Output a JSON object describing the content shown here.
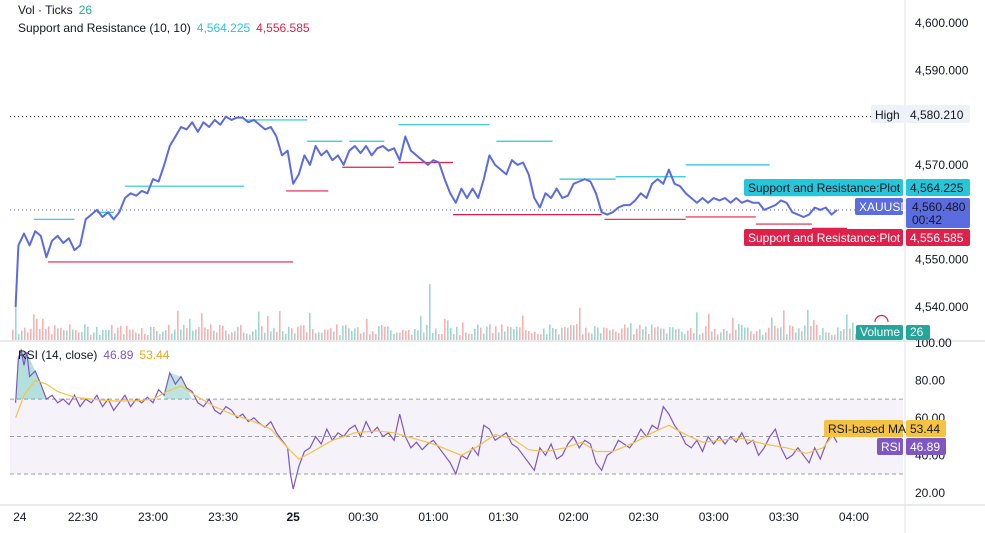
{
  "colors": {
    "price": "#5b6be0",
    "resistance": "#26c6da",
    "support": "#e0204a",
    "volume_up": "#26a69a",
    "volume_down": "#ef5350",
    "rsi": "#7e57c2",
    "rsi_ma": "#f5c342",
    "grid": "#e0e3eb"
  },
  "legend": {
    "vol_label": "Vol · Ticks",
    "vol_value": "26",
    "sr_label": "Support and Resistance (10, 10)",
    "sr_upper": "4,564.225",
    "sr_lower": "4,556.585",
    "rsi_label": "RSI (14, close)",
    "rsi_value": "46.89",
    "rsi_ma_value": "53.44"
  },
  "tags": {
    "high_label": "High",
    "high_value": "4,580.210",
    "resistance_label": "Support and Resistance:Plot",
    "resistance_value": "4,564.225",
    "symbol": "XAUUSD",
    "last_price": "4,560.480",
    "countdown": "00:42",
    "support_label": "Support and Resistance:Plot",
    "support_value": "4,556.585",
    "volume_label": "Volume",
    "volume_value": "26",
    "rsi_ma_label": "RSI-based MA",
    "rsi_ma_value": "53.44",
    "rsi_label": "RSI",
    "rsi_value": "46.89"
  },
  "chart_data": {
    "type": "line",
    "price_axis": {
      "ticks": [
        {
          "v": 4600,
          "label": "4,600.000"
        },
        {
          "v": 4590,
          "label": "4,590.000"
        },
        {
          "v": 4570,
          "label": "4,570.000"
        },
        {
          "v": 4550,
          "label": "4,550.000"
        },
        {
          "v": 4540,
          "label": "4,540.000"
        }
      ],
      "ylim": [
        4533,
        4604
      ]
    },
    "rsi_axis": {
      "ticks": [
        {
          "v": 100,
          "label": "100.00"
        },
        {
          "v": 80,
          "label": "80.00"
        },
        {
          "v": 60,
          "label": "60.00"
        },
        {
          "v": 40,
          "label": "40.00"
        },
        {
          "v": 20,
          "label": "20.00"
        }
      ],
      "ylim": [
        14,
        101
      ],
      "band": [
        30,
        70
      ],
      "midline": 50
    },
    "time_axis": {
      "xlim": [
        -0.02,
        6.35
      ],
      "ticks": [
        {
          "t": 0.05,
          "label": "24"
        },
        {
          "t": 0.5,
          "label": "22:30"
        },
        {
          "t": 1.0,
          "label": "23:00"
        },
        {
          "t": 1.5,
          "label": "23:30"
        },
        {
          "t": 2.0,
          "label": "25"
        },
        {
          "t": 2.5,
          "label": "00:30"
        },
        {
          "t": 3.0,
          "label": "01:00"
        },
        {
          "t": 3.5,
          "label": "01:30"
        },
        {
          "t": 4.0,
          "label": "02:00"
        },
        {
          "t": 4.5,
          "label": "02:30"
        },
        {
          "t": 5.0,
          "label": "03:00"
        },
        {
          "t": 5.5,
          "label": "03:30"
        },
        {
          "t": 6.0,
          "label": "04:00"
        }
      ]
    },
    "high_value": 4580.21,
    "last_price": 4560.48,
    "price_series": [
      [
        0.02,
        4540
      ],
      [
        0.04,
        4553
      ],
      [
        0.08,
        4555.5
      ],
      [
        0.12,
        4553
      ],
      [
        0.16,
        4556
      ],
      [
        0.2,
        4555
      ],
      [
        0.24,
        4550.5
      ],
      [
        0.28,
        4554
      ],
      [
        0.32,
        4555
      ],
      [
        0.36,
        4553.5
      ],
      [
        0.4,
        4554.5
      ],
      [
        0.44,
        4552
      ],
      [
        0.48,
        4553
      ],
      [
        0.52,
        4558.5
      ],
      [
        0.56,
        4559.5
      ],
      [
        0.6,
        4560.5
      ],
      [
        0.64,
        4559
      ],
      [
        0.68,
        4560
      ],
      [
        0.72,
        4558.5
      ],
      [
        0.76,
        4560
      ],
      [
        0.8,
        4563
      ],
      [
        0.84,
        4564
      ],
      [
        0.88,
        4563.5
      ],
      [
        0.92,
        4564.5
      ],
      [
        0.96,
        4564
      ],
      [
        1.0,
        4567
      ],
      [
        1.04,
        4566.5
      ],
      [
        1.08,
        4570
      ],
      [
        1.12,
        4574
      ],
      [
        1.16,
        4576
      ],
      [
        1.2,
        4578
      ],
      [
        1.24,
        4577.5
      ],
      [
        1.28,
        4579
      ],
      [
        1.32,
        4577
      ],
      [
        1.36,
        4579
      ],
      [
        1.4,
        4578
      ],
      [
        1.44,
        4579.5
      ],
      [
        1.48,
        4578.5
      ],
      [
        1.52,
        4580.2
      ],
      [
        1.56,
        4579.5
      ],
      [
        1.6,
        4580
      ],
      [
        1.64,
        4580
      ],
      [
        1.68,
        4579
      ],
      [
        1.72,
        4579.5
      ],
      [
        1.76,
        4578.5
      ],
      [
        1.8,
        4577.5
      ],
      [
        1.84,
        4578
      ],
      [
        1.88,
        4576
      ],
      [
        1.92,
        4572
      ],
      [
        1.96,
        4573
      ],
      [
        2.0,
        4566
      ],
      [
        2.04,
        4568
      ],
      [
        2.08,
        4572
      ],
      [
        2.12,
        4570
      ],
      [
        2.16,
        4574
      ],
      [
        2.2,
        4572
      ],
      [
        2.24,
        4573
      ],
      [
        2.28,
        4571
      ],
      [
        2.32,
        4572
      ],
      [
        2.36,
        4570
      ],
      [
        2.4,
        4573
      ],
      [
        2.44,
        4574
      ],
      [
        2.48,
        4572.5
      ],
      [
        2.52,
        4574
      ],
      [
        2.56,
        4572
      ],
      [
        2.6,
        4573.5
      ],
      [
        2.64,
        4574
      ],
      [
        2.68,
        4573
      ],
      [
        2.72,
        4573.5
      ],
      [
        2.76,
        4571
      ],
      [
        2.8,
        4576
      ],
      [
        2.84,
        4573
      ],
      [
        2.88,
        4572
      ],
      [
        2.92,
        4571
      ],
      [
        2.96,
        4570
      ],
      [
        3.0,
        4571
      ],
      [
        3.04,
        4570.5
      ],
      [
        3.08,
        4567
      ],
      [
        3.12,
        4564
      ],
      [
        3.16,
        4562
      ],
      [
        3.2,
        4565
      ],
      [
        3.24,
        4563
      ],
      [
        3.28,
        4565
      ],
      [
        3.32,
        4563
      ],
      [
        3.36,
        4567
      ],
      [
        3.4,
        4572
      ],
      [
        3.44,
        4570
      ],
      [
        3.48,
        4569
      ],
      [
        3.52,
        4568
      ],
      [
        3.56,
        4571
      ],
      [
        3.6,
        4570
      ],
      [
        3.64,
        4570.5
      ],
      [
        3.68,
        4568
      ],
      [
        3.72,
        4563
      ],
      [
        3.76,
        4561
      ],
      [
        3.8,
        4564
      ],
      [
        3.84,
        4563
      ],
      [
        3.88,
        4565
      ],
      [
        3.92,
        4563
      ],
      [
        3.96,
        4563.5
      ],
      [
        4.0,
        4566
      ],
      [
        4.04,
        4566.5
      ],
      [
        4.08,
        4567
      ],
      [
        4.12,
        4566.5
      ],
      [
        4.16,
        4564
      ],
      [
        4.2,
        4560
      ],
      [
        4.24,
        4559.5
      ],
      [
        4.28,
        4560
      ],
      [
        4.32,
        4561
      ],
      [
        4.36,
        4561.5
      ],
      [
        4.4,
        4561.5
      ],
      [
        4.44,
        4562.5
      ],
      [
        4.48,
        4564
      ],
      [
        4.52,
        4563
      ],
      [
        4.56,
        4566
      ],
      [
        4.6,
        4567
      ],
      [
        4.64,
        4566
      ],
      [
        4.68,
        4569
      ],
      [
        4.72,
        4566
      ],
      [
        4.76,
        4565.5
      ],
      [
        4.8,
        4564
      ],
      [
        4.84,
        4563
      ],
      [
        4.88,
        4562
      ],
      [
        4.92,
        4563
      ],
      [
        4.96,
        4562
      ],
      [
        5.0,
        4563
      ],
      [
        5.04,
        4562.5
      ],
      [
        5.08,
        4563
      ],
      [
        5.12,
        4562
      ],
      [
        5.16,
        4563
      ],
      [
        5.2,
        4562
      ],
      [
        5.24,
        4562.5
      ],
      [
        5.28,
        4562
      ],
      [
        5.32,
        4562
      ],
      [
        5.36,
        4560.5
      ],
      [
        5.4,
        4561
      ],
      [
        5.44,
        4561.5
      ],
      [
        5.48,
        4562.5
      ],
      [
        5.52,
        4562
      ],
      [
        5.56,
        4560
      ],
      [
        5.6,
        4559.5
      ],
      [
        5.64,
        4559
      ],
      [
        5.68,
        4559.5
      ],
      [
        5.72,
        4561
      ],
      [
        5.76,
        4560.5
      ],
      [
        5.8,
        4561
      ],
      [
        5.84,
        4559.5
      ],
      [
        5.88,
        4560.48
      ]
    ],
    "resistance_segments": [
      [
        0.15,
        0.44,
        4558.5
      ],
      [
        0.6,
        0.72,
        4560
      ],
      [
        0.8,
        1.65,
        4565.5
      ],
      [
        1.65,
        2.1,
        4579.5
      ],
      [
        2.1,
        2.35,
        4575
      ],
      [
        2.4,
        2.65,
        4575
      ],
      [
        2.75,
        3.4,
        4578.5
      ],
      [
        3.45,
        3.85,
        4575
      ],
      [
        3.9,
        4.3,
        4567
      ],
      [
        4.3,
        4.8,
        4567.5
      ],
      [
        4.8,
        5.4,
        4570
      ],
      [
        5.4,
        5.75,
        4563.5
      ]
    ],
    "support_segments": [
      [
        0.25,
        2.0,
        4549.5
      ],
      [
        1.95,
        2.25,
        4564.5
      ],
      [
        2.35,
        2.72,
        4569.5
      ],
      [
        2.75,
        3.14,
        4570.5
      ],
      [
        3.14,
        3.77,
        4559.5
      ],
      [
        3.77,
        4.2,
        4559.5
      ],
      [
        4.22,
        4.8,
        4558.5
      ],
      [
        4.8,
        5.3,
        4559
      ],
      [
        5.3,
        5.7,
        4557.5
      ],
      [
        5.7,
        5.95,
        4556.59
      ]
    ],
    "volume_series_note": "",
    "volume_ylim": [
      0,
      100
    ],
    "rsi_series": [
      [
        0.02,
        68
      ],
      [
        0.04,
        92
      ],
      [
        0.06,
        96
      ],
      [
        0.08,
        88
      ],
      [
        0.1,
        95
      ],
      [
        0.12,
        82
      ],
      [
        0.16,
        85
      ],
      [
        0.2,
        78
      ],
      [
        0.24,
        70
      ],
      [
        0.28,
        72
      ],
      [
        0.32,
        68
      ],
      [
        0.36,
        70
      ],
      [
        0.4,
        67
      ],
      [
        0.44,
        72
      ],
      [
        0.48,
        66
      ],
      [
        0.52,
        70
      ],
      [
        0.56,
        68
      ],
      [
        0.6,
        72
      ],
      [
        0.64,
        66
      ],
      [
        0.68,
        70
      ],
      [
        0.72,
        64
      ],
      [
        0.76,
        68
      ],
      [
        0.8,
        72
      ],
      [
        0.84,
        66
      ],
      [
        0.88,
        70
      ],
      [
        0.92,
        68
      ],
      [
        0.96,
        71
      ],
      [
        1.0,
        68
      ],
      [
        1.04,
        75
      ],
      [
        1.08,
        72
      ],
      [
        1.12,
        84
      ],
      [
        1.16,
        78
      ],
      [
        1.2,
        82
      ],
      [
        1.24,
        76
      ],
      [
        1.28,
        74
      ],
      [
        1.32,
        68
      ],
      [
        1.36,
        66
      ],
      [
        1.4,
        70
      ],
      [
        1.44,
        64
      ],
      [
        1.48,
        62
      ],
      [
        1.52,
        66
      ],
      [
        1.56,
        64
      ],
      [
        1.6,
        60
      ],
      [
        1.64,
        62
      ],
      [
        1.68,
        58
      ],
      [
        1.72,
        60
      ],
      [
        1.76,
        57
      ],
      [
        1.8,
        55
      ],
      [
        1.84,
        58
      ],
      [
        1.88,
        52
      ],
      [
        1.92,
        48
      ],
      [
        1.96,
        44
      ],
      [
        1.98,
        30
      ],
      [
        2.0,
        22
      ],
      [
        2.04,
        34
      ],
      [
        2.08,
        42
      ],
      [
        2.12,
        44
      ],
      [
        2.16,
        50
      ],
      [
        2.2,
        46
      ],
      [
        2.24,
        54
      ],
      [
        2.28,
        48
      ],
      [
        2.32,
        52
      ],
      [
        2.36,
        50
      ],
      [
        2.4,
        54
      ],
      [
        2.44,
        56
      ],
      [
        2.48,
        50
      ],
      [
        2.52,
        58
      ],
      [
        2.56,
        52
      ],
      [
        2.6,
        55
      ],
      [
        2.64,
        50
      ],
      [
        2.68,
        52
      ],
      [
        2.72,
        48
      ],
      [
        2.76,
        62
      ],
      [
        2.8,
        50
      ],
      [
        2.84,
        44
      ],
      [
        2.88,
        47
      ],
      [
        2.92,
        43
      ],
      [
        2.96,
        46
      ],
      [
        3.0,
        48
      ],
      [
        3.04,
        44
      ],
      [
        3.08,
        40
      ],
      [
        3.12,
        36
      ],
      [
        3.16,
        30
      ],
      [
        3.2,
        40
      ],
      [
        3.24,
        38
      ],
      [
        3.28,
        44
      ],
      [
        3.32,
        40
      ],
      [
        3.36,
        56
      ],
      [
        3.4,
        54
      ],
      [
        3.44,
        48
      ],
      [
        3.48,
        50
      ],
      [
        3.52,
        52
      ],
      [
        3.56,
        46
      ],
      [
        3.6,
        44
      ],
      [
        3.64,
        40
      ],
      [
        3.68,
        36
      ],
      [
        3.72,
        32
      ],
      [
        3.76,
        44
      ],
      [
        3.8,
        40
      ],
      [
        3.84,
        46
      ],
      [
        3.88,
        38
      ],
      [
        3.92,
        40
      ],
      [
        3.96,
        46
      ],
      [
        4.0,
        50
      ],
      [
        4.04,
        44
      ],
      [
        4.08,
        48
      ],
      [
        4.12,
        46
      ],
      [
        4.16,
        36
      ],
      [
        4.2,
        32
      ],
      [
        4.24,
        40
      ],
      [
        4.28,
        42
      ],
      [
        4.32,
        48
      ],
      [
        4.36,
        46
      ],
      [
        4.4,
        44
      ],
      [
        4.44,
        48
      ],
      [
        4.48,
        54
      ],
      [
        4.52,
        50
      ],
      [
        4.56,
        56
      ],
      [
        4.6,
        54
      ],
      [
        4.64,
        66
      ],
      [
        4.68,
        62
      ],
      [
        4.72,
        56
      ],
      [
        4.76,
        52
      ],
      [
        4.8,
        46
      ],
      [
        4.84,
        44
      ],
      [
        4.88,
        48
      ],
      [
        4.92,
        42
      ],
      [
        4.96,
        50
      ],
      [
        5.0,
        46
      ],
      [
        5.04,
        50
      ],
      [
        5.08,
        46
      ],
      [
        5.12,
        50
      ],
      [
        5.16,
        47
      ],
      [
        5.2,
        52
      ],
      [
        5.24,
        46
      ],
      [
        5.28,
        48
      ],
      [
        5.32,
        40
      ],
      [
        5.36,
        44
      ],
      [
        5.4,
        50
      ],
      [
        5.44,
        54
      ],
      [
        5.48,
        44
      ],
      [
        5.52,
        38
      ],
      [
        5.56,
        40
      ],
      [
        5.6,
        44
      ],
      [
        5.64,
        40
      ],
      [
        5.68,
        36
      ],
      [
        5.72,
        44
      ],
      [
        5.76,
        38
      ],
      [
        5.8,
        46
      ],
      [
        5.84,
        52
      ],
      [
        5.88,
        46.89
      ]
    ],
    "rsi_ma_series": [
      [
        0.02,
        60
      ],
      [
        0.08,
        72
      ],
      [
        0.16,
        80
      ],
      [
        0.24,
        78
      ],
      [
        0.32,
        74
      ],
      [
        0.44,
        71
      ],
      [
        0.56,
        70
      ],
      [
        0.72,
        69
      ],
      [
        0.88,
        69
      ],
      [
        1.0,
        70
      ],
      [
        1.1,
        74
      ],
      [
        1.2,
        77
      ],
      [
        1.3,
        72
      ],
      [
        1.44,
        66
      ],
      [
        1.56,
        62
      ],
      [
        1.72,
        58
      ],
      [
        1.84,
        54
      ],
      [
        1.96,
        44
      ],
      [
        2.04,
        38
      ],
      [
        2.14,
        42
      ],
      [
        2.28,
        48
      ],
      [
        2.44,
        52
      ],
      [
        2.6,
        53
      ],
      [
        2.72,
        52
      ],
      [
        2.86,
        49
      ],
      [
        3.0,
        46
      ],
      [
        3.1,
        43
      ],
      [
        3.2,
        40
      ],
      [
        3.3,
        44
      ],
      [
        3.44,
        51
      ],
      [
        3.56,
        49
      ],
      [
        3.68,
        43
      ],
      [
        3.8,
        42
      ],
      [
        3.94,
        44
      ],
      [
        4.06,
        47
      ],
      [
        4.16,
        42
      ],
      [
        4.28,
        42
      ],
      [
        4.44,
        47
      ],
      [
        4.56,
        52
      ],
      [
        4.68,
        56
      ],
      [
        4.8,
        51
      ],
      [
        4.92,
        47
      ],
      [
        5.04,
        48
      ],
      [
        5.2,
        49
      ],
      [
        5.36,
        46
      ],
      [
        5.52,
        44
      ],
      [
        5.66,
        41
      ],
      [
        5.78,
        44
      ],
      [
        5.88,
        53.44
      ]
    ]
  }
}
